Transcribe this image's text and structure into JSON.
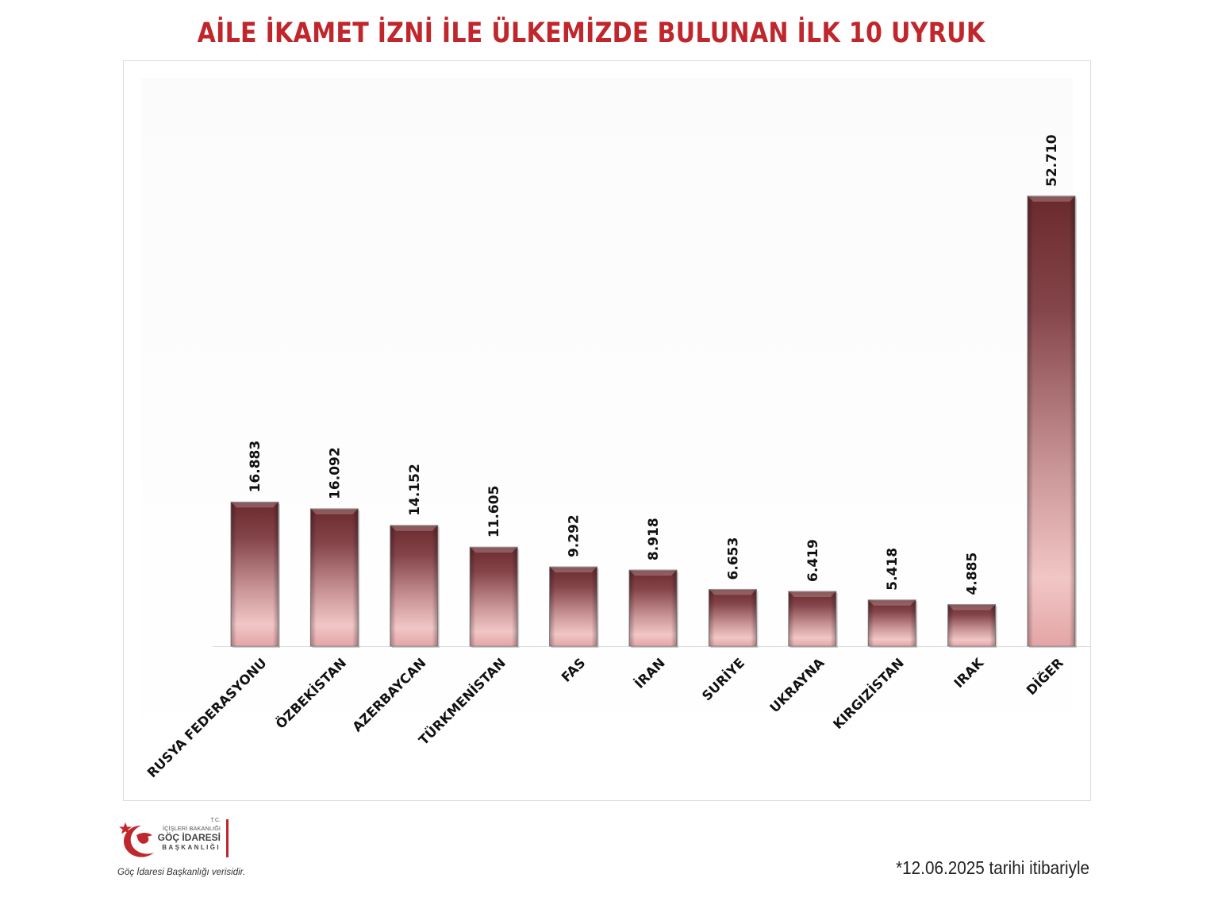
{
  "chart_data": {
    "type": "bar",
    "title": "AİLE İKAMET İZNİ İLE ÜLKEMİZDE BULUNAN İLK 10 UYRUK",
    "categories": [
      "RUSYA FEDERASYONU",
      "ÖZBEKİSTAN",
      "AZERBAYCAN",
      "TÜRKMENİSTAN",
      "FAS",
      "İRAN",
      "SURİYE",
      "UKRAYNA",
      "KIRGIZİSTAN",
      "IRAK",
      "DİĞER"
    ],
    "values": [
      16883,
      16092,
      14152,
      11605,
      9292,
      8918,
      6653,
      6419,
      5418,
      4885,
      52710
    ],
    "value_labels": [
      "16.883",
      "16.092",
      "14.152",
      "11.605",
      "9.292",
      "8.918",
      "6.653",
      "6.419",
      "5.418",
      "4.885",
      "52.710"
    ],
    "ylim": [
      0,
      52710
    ],
    "xlabel": "",
    "ylabel": "",
    "grid": false,
    "legend": "none",
    "colors": {
      "bar_top": "#6e2c2f",
      "bar_mid": "#b87a7c",
      "bar_light": "#f0c4c4",
      "bar_bottom": "#e0a6a6",
      "title": "#c0272d"
    }
  },
  "logo": {
    "line1": "T.C.",
    "line2": "İÇİŞLERİ BAKANLIĞI",
    "line3": "GÖÇ İDARESİ",
    "line4": "BAŞKANLIĞI",
    "icon": "crescent-star-bird-icon"
  },
  "footer": {
    "source": "Göç İdaresi Başkanlığı verisidir.",
    "date_note": "*12.06.2025 tarihi itibariyle"
  }
}
